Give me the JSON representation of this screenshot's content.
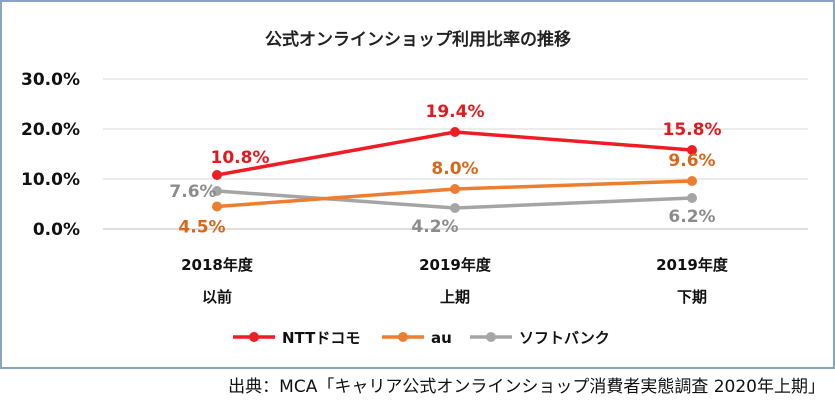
{
  "chart_data": {
    "type": "line",
    "title": "公式オンラインショップ利用比率の推移",
    "categories": [
      [
        "2018年度",
        "以前"
      ],
      [
        "2019年度",
        "上期"
      ],
      [
        "2019年度",
        "下期"
      ]
    ],
    "yticks": [
      "0.0%",
      "10.0%",
      "20.0%",
      "30.0%"
    ],
    "ylim": [
      0,
      30
    ],
    "grid": true,
    "legend_position": "bottom",
    "series": [
      {
        "name": "NTTドコモ",
        "color": "#ee1c24",
        "values": [
          10.8,
          19.4,
          15.8
        ],
        "labels": [
          "10.8%",
          "19.4%",
          "15.8%"
        ],
        "label_color": "#e3191f"
      },
      {
        "name": "au",
        "color": "#ed7d31",
        "values": [
          4.5,
          8.0,
          9.6
        ],
        "labels": [
          "4.5%",
          "8.0%",
          "9.6%"
        ],
        "label_color": "#d8671c"
      },
      {
        "name": "ソフトバンク",
        "color": "#a5a5a5",
        "values": [
          7.6,
          4.2,
          6.2
        ],
        "labels": [
          "7.6%",
          "4.2%",
          "6.2%"
        ],
        "label_color": "#8c8c8c"
      }
    ]
  },
  "source": "出典：MCA「キャリア公式オンラインショップ消費者実態調査 2020年上期」"
}
